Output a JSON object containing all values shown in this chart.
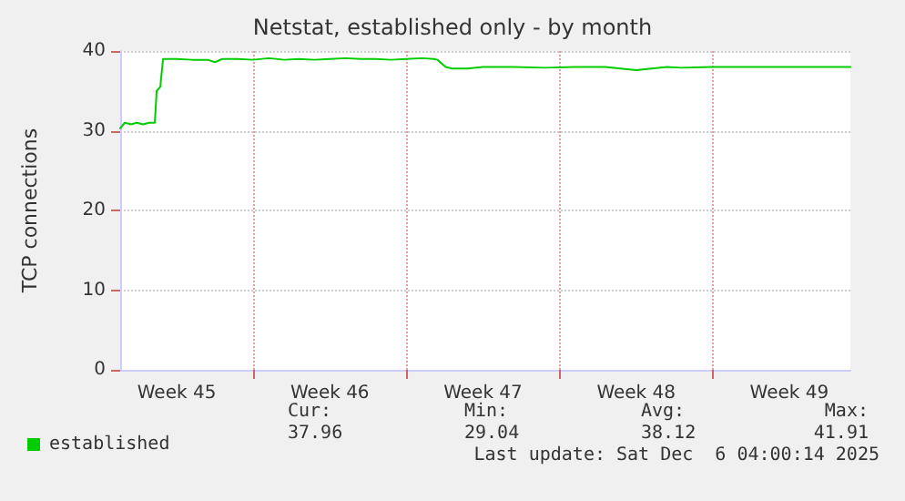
{
  "chart_data": {
    "type": "line",
    "title": "Netstat, established only - by month",
    "ylabel": "TCP connections",
    "x": [
      "2025-11-03T22:00",
      "2025-11-04T03:00",
      "2025-11-04T10:00",
      "2025-11-04T16:00",
      "2025-11-04T23:00",
      "2025-11-05T06:00",
      "2025-11-05T12:00",
      "2025-11-05T14:00",
      "2025-11-05T18:00",
      "2025-11-05T21:00",
      "2025-11-06T12:00",
      "2025-11-07T05:00",
      "2025-11-07T22:00",
      "2025-11-08T06:00",
      "2025-11-08T14:00",
      "2025-11-09T07:00",
      "2025-11-10T00:00",
      "2025-11-10T17:00",
      "2025-11-11T10:00",
      "2025-11-12T02:00",
      "2025-11-12T19:00",
      "2025-11-13T12:00",
      "2025-11-14T05:00",
      "2025-11-14T22:00",
      "2025-11-15T14:00",
      "2025-11-16T07:00",
      "2025-11-17T00:00",
      "2025-11-17T17:00",
      "2025-11-18T06:00",
      "2025-11-18T10:00",
      "2025-11-18T19:00",
      "2025-11-19T02:00",
      "2025-11-19T19:00",
      "2025-11-20T12:00",
      "2025-11-21T22:00",
      "2025-11-23T07:00",
      "2025-11-24T17:00",
      "2025-11-25T10:00",
      "2025-11-26T02:00",
      "2025-11-27T12:00",
      "2025-11-28T22:00",
      "2025-11-29T14:00",
      "2025-12-01T00:00",
      "2025-12-02T10:00",
      "2025-12-03T19:00",
      "2025-12-05T05:00",
      "2025-12-07T07:00"
    ],
    "series": [
      {
        "name": "established",
        "color": "#00cc00",
        "values": [
          30.3,
          31,
          30.8,
          31,
          30.8,
          31,
          31,
          35,
          35.5,
          39,
          39,
          38.9,
          38.9,
          38.6,
          39,
          39,
          38.9,
          39.1,
          38.9,
          39,
          38.9,
          39,
          39.1,
          39,
          39,
          38.9,
          39,
          39.1,
          39,
          38.9,
          38,
          37.8,
          37.8,
          38,
          38,
          37.9,
          38,
          38,
          38,
          37.6,
          38,
          37.9,
          38,
          38,
          38,
          38,
          38
        ]
      }
    ],
    "xlim": [
      "2025-11-03T22:00",
      "2025-12-07T07:00"
    ],
    "xticks": [
      {
        "value": "2025-11-06T12:00",
        "label": "Week 45"
      },
      {
        "value": "2025-11-10T00:00",
        "label": null
      },
      {
        "value": "2025-11-13T12:00",
        "label": "Week 46"
      },
      {
        "value": "2025-11-17T00:00",
        "label": null
      },
      {
        "value": "2025-11-20T12:00",
        "label": "Week 47"
      },
      {
        "value": "2025-11-24T00:00",
        "label": null
      },
      {
        "value": "2025-11-27T12:00",
        "label": "Week 48"
      },
      {
        "value": "2025-12-01T00:00",
        "label": null
      },
      {
        "value": "2025-12-04T12:00",
        "label": "Week 49"
      }
    ],
    "ylim": [
      0,
      40
    ],
    "yticks": [
      0,
      10,
      20,
      30,
      40
    ],
    "grid": true,
    "legend": "bottom left",
    "marker": "none",
    "line_style": "solid",
    "annotations": [
      "Cur:",
      "37.96",
      "Min:",
      "29.04",
      "Avg:",
      "38.12",
      "Max:",
      "41.91",
      "Last update: Sat Dec  6 04:00:14 2025"
    ]
  }
}
